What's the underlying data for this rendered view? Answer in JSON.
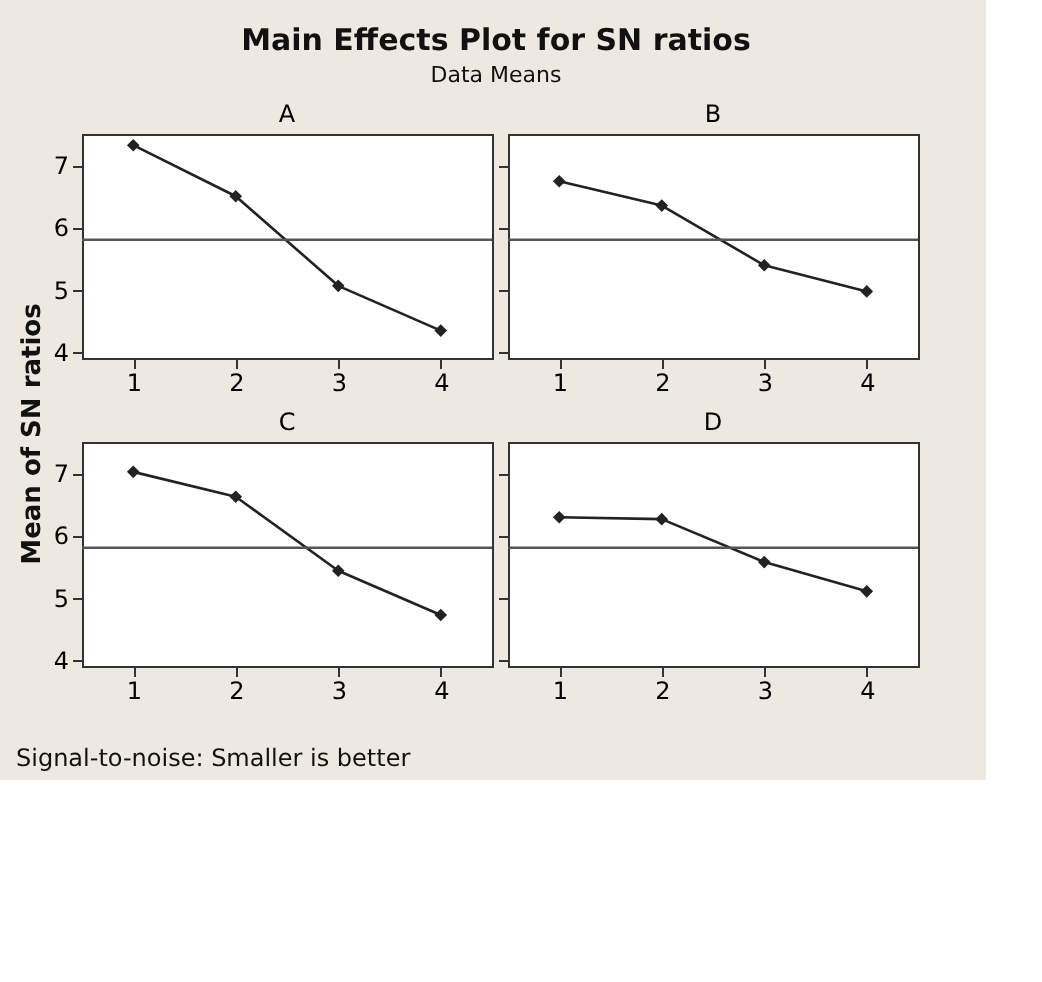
{
  "chart_data": [
    {
      "type": "line",
      "title": "A",
      "annotations": [
        "Main Effects Plot for SN ratios",
        "Data Means",
        "Signal-to-noise: Smaller is better"
      ],
      "ylabel": "Mean of SN ratios",
      "x": [
        1,
        2,
        3,
        4
      ],
      "xlim": [
        0.5,
        4.5
      ],
      "xticks": [
        1,
        2,
        3,
        4
      ],
      "ylim": [
        3.9,
        7.5
      ],
      "yticks": [
        4,
        5,
        6,
        7
      ],
      "marker": "diamond",
      "line_style": "solid",
      "grid": false,
      "series": [
        {
          "color": "#222222",
          "values": [
            7.32,
            6.5,
            5.06,
            4.34
          ]
        }
      ],
      "ref_lines": [
        {
          "axis": "y",
          "value": 5.8,
          "color": "#555555"
        }
      ]
    },
    {
      "type": "line",
      "title": "B",
      "x": [
        1,
        2,
        3,
        4
      ],
      "xlim": [
        0.5,
        4.5
      ],
      "xticks": [
        1,
        2,
        3,
        4
      ],
      "ylim": [
        3.9,
        7.5
      ],
      "yticks": [
        4,
        5,
        6,
        7
      ],
      "tick_labels": "x",
      "marker": "diamond",
      "line_style": "solid",
      "grid": false,
      "series": [
        {
          "color": "#222222",
          "values": [
            6.74,
            6.35,
            5.39,
            4.97
          ]
        }
      ],
      "ref_lines": [
        {
          "axis": "y",
          "value": 5.8,
          "color": "#555555"
        }
      ]
    },
    {
      "type": "line",
      "title": "C",
      "x": [
        1,
        2,
        3,
        4
      ],
      "xlim": [
        0.5,
        4.5
      ],
      "xticks": [
        1,
        2,
        3,
        4
      ],
      "ylim": [
        3.9,
        7.5
      ],
      "yticks": [
        4,
        5,
        6,
        7
      ],
      "marker": "diamond",
      "line_style": "solid",
      "grid": false,
      "series": [
        {
          "color": "#222222",
          "values": [
            7.02,
            6.62,
            5.43,
            4.72
          ]
        }
      ],
      "ref_lines": [
        {
          "axis": "y",
          "value": 5.8,
          "color": "#555555"
        }
      ]
    },
    {
      "type": "line",
      "title": "D",
      "x": [
        1,
        2,
        3,
        4
      ],
      "xlim": [
        0.5,
        4.5
      ],
      "xticks": [
        1,
        2,
        3,
        4
      ],
      "ylim": [
        3.9,
        7.5
      ],
      "yticks": [
        4,
        5,
        6,
        7
      ],
      "tick_labels": "x",
      "marker": "diamond",
      "line_style": "solid",
      "grid": false,
      "series": [
        {
          "color": "#222222",
          "values": [
            6.29,
            6.26,
            5.57,
            5.1
          ]
        }
      ],
      "ref_lines": [
        {
          "axis": "y",
          "value": 5.8,
          "color": "#555555"
        }
      ]
    }
  ]
}
